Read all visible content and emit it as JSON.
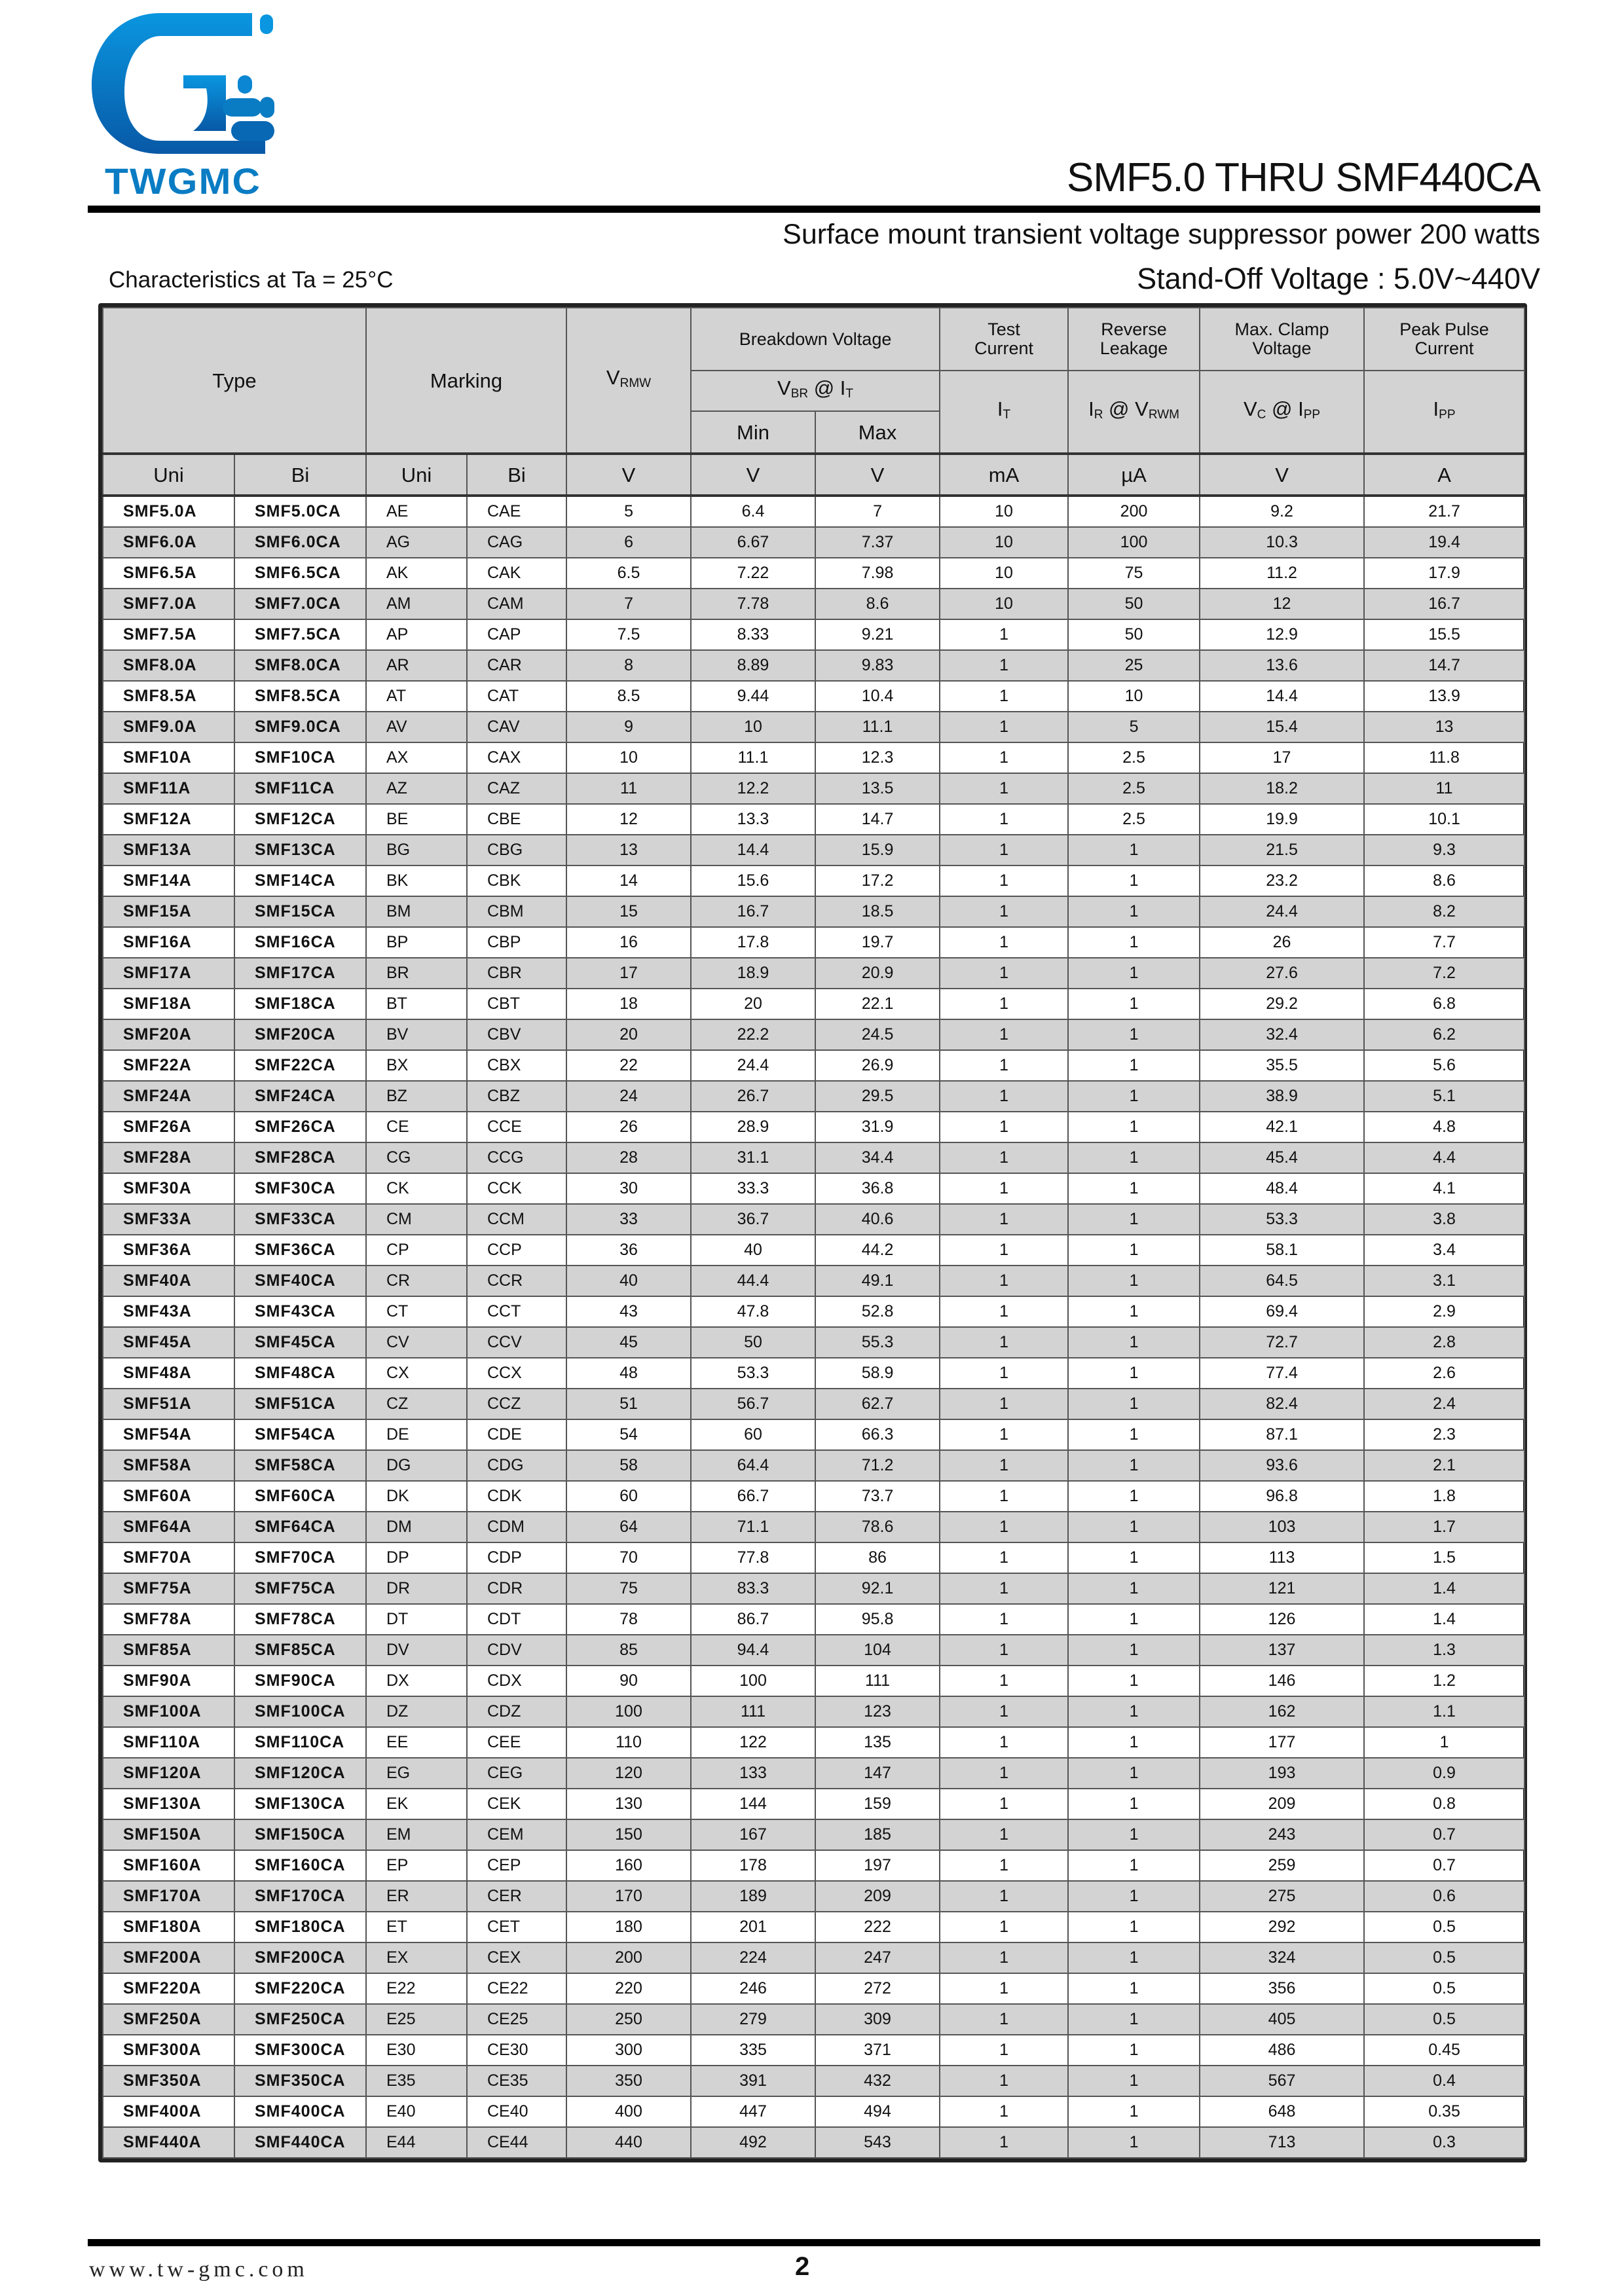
{
  "header": {
    "brand": "TWGMC",
    "brand_color": "#0a7cc4",
    "title": "SMF5.0 THRU SMF440CA",
    "subtitle": "Surface mount transient  voltage suppressor power 200 watts",
    "characteristics": "Characteristics at Ta = 25°C",
    "standoff": "Stand-Off Voltage :  5.0V~440V"
  },
  "table": {
    "headers": {
      "type": "Type",
      "marking": "Marking",
      "vrwm": {
        "main": "V",
        "sub": "RMW"
      },
      "breakdown": "Breakdown Voltage",
      "test_current": "Test Current",
      "reverse_leakage": "Reverse Leakage",
      "max_clamp": "Max. Clamp Voltage",
      "peak_pulse": "Peak Pulse Current",
      "vbr": {
        "v": "V",
        "vsub": "BR",
        "at": " @ ",
        "i": "I",
        "isub": "T"
      },
      "it": {
        "main": "I",
        "sub": "T"
      },
      "ir": {
        "main": "I",
        "sub": "R",
        "at": " @ ",
        "v": "V",
        "vsub": "RWM"
      },
      "vc": {
        "main": "V",
        "sub": "C",
        "at": " @ ",
        "i": "I",
        "isub": "PP"
      },
      "ipp": {
        "main": "I",
        "sub": "PP"
      },
      "min": "Min",
      "max": "Max"
    },
    "units": [
      "Uni",
      "Bi",
      "Uni",
      "Bi",
      "V",
      "V",
      "V",
      "mA",
      "µA",
      "V",
      "A"
    ],
    "rows": [
      [
        "SMF5.0A",
        "SMF5.0CA",
        "AE",
        "CAE",
        "5",
        "6.4",
        "7",
        "10",
        "200",
        "9.2",
        "21.7"
      ],
      [
        "SMF6.0A",
        "SMF6.0CA",
        "AG",
        "CAG",
        "6",
        "6.67",
        "7.37",
        "10",
        "100",
        "10.3",
        "19.4"
      ],
      [
        "SMF6.5A",
        "SMF6.5CA",
        "AK",
        "CAK",
        "6.5",
        "7.22",
        "7.98",
        "10",
        "75",
        "11.2",
        "17.9"
      ],
      [
        "SMF7.0A",
        "SMF7.0CA",
        "AM",
        "CAM",
        "7",
        "7.78",
        "8.6",
        "10",
        "50",
        "12",
        "16.7"
      ],
      [
        "SMF7.5A",
        "SMF7.5CA",
        "AP",
        "CAP",
        "7.5",
        "8.33",
        "9.21",
        "1",
        "50",
        "12.9",
        "15.5"
      ],
      [
        "SMF8.0A",
        "SMF8.0CA",
        "AR",
        "CAR",
        "8",
        "8.89",
        "9.83",
        "1",
        "25",
        "13.6",
        "14.7"
      ],
      [
        "SMF8.5A",
        "SMF8.5CA",
        "AT",
        "CAT",
        "8.5",
        "9.44",
        "10.4",
        "1",
        "10",
        "14.4",
        "13.9"
      ],
      [
        "SMF9.0A",
        "SMF9.0CA",
        "AV",
        "CAV",
        "9",
        "10",
        "11.1",
        "1",
        "5",
        "15.4",
        "13"
      ],
      [
        "SMF10A",
        "SMF10CA",
        "AX",
        "CAX",
        "10",
        "11.1",
        "12.3",
        "1",
        "2.5",
        "17",
        "11.8"
      ],
      [
        "SMF11A",
        "SMF11CA",
        "AZ",
        "CAZ",
        "11",
        "12.2",
        "13.5",
        "1",
        "2.5",
        "18.2",
        "11"
      ],
      [
        "SMF12A",
        "SMF12CA",
        "BE",
        "CBE",
        "12",
        "13.3",
        "14.7",
        "1",
        "2.5",
        "19.9",
        "10.1"
      ],
      [
        "SMF13A",
        "SMF13CA",
        "BG",
        "CBG",
        "13",
        "14.4",
        "15.9",
        "1",
        "1",
        "21.5",
        "9.3"
      ],
      [
        "SMF14A",
        "SMF14CA",
        "BK",
        "CBK",
        "14",
        "15.6",
        "17.2",
        "1",
        "1",
        "23.2",
        "8.6"
      ],
      [
        "SMF15A",
        "SMF15CA",
        "BM",
        "CBM",
        "15",
        "16.7",
        "18.5",
        "1",
        "1",
        "24.4",
        "8.2"
      ],
      [
        "SMF16A",
        "SMF16CA",
        "BP",
        "CBP",
        "16",
        "17.8",
        "19.7",
        "1",
        "1",
        "26",
        "7.7"
      ],
      [
        "SMF17A",
        "SMF17CA",
        "BR",
        "CBR",
        "17",
        "18.9",
        "20.9",
        "1",
        "1",
        "27.6",
        "7.2"
      ],
      [
        "SMF18A",
        "SMF18CA",
        "BT",
        "CBT",
        "18",
        "20",
        "22.1",
        "1",
        "1",
        "29.2",
        "6.8"
      ],
      [
        "SMF20A",
        "SMF20CA",
        "BV",
        "CBV",
        "20",
        "22.2",
        "24.5",
        "1",
        "1",
        "32.4",
        "6.2"
      ],
      [
        "SMF22A",
        "SMF22CA",
        "BX",
        "CBX",
        "22",
        "24.4",
        "26.9",
        "1",
        "1",
        "35.5",
        "5.6"
      ],
      [
        "SMF24A",
        "SMF24CA",
        "BZ",
        "CBZ",
        "24",
        "26.7",
        "29.5",
        "1",
        "1",
        "38.9",
        "5.1"
      ],
      [
        "SMF26A",
        "SMF26CA",
        "CE",
        "CCE",
        "26",
        "28.9",
        "31.9",
        "1",
        "1",
        "42.1",
        "4.8"
      ],
      [
        "SMF28A",
        "SMF28CA",
        "CG",
        "CCG",
        "28",
        "31.1",
        "34.4",
        "1",
        "1",
        "45.4",
        "4.4"
      ],
      [
        "SMF30A",
        "SMF30CA",
        "CK",
        "CCK",
        "30",
        "33.3",
        "36.8",
        "1",
        "1",
        "48.4",
        "4.1"
      ],
      [
        "SMF33A",
        "SMF33CA",
        "CM",
        "CCM",
        "33",
        "36.7",
        "40.6",
        "1",
        "1",
        "53.3",
        "3.8"
      ],
      [
        "SMF36A",
        "SMF36CA",
        "CP",
        "CCP",
        "36",
        "40",
        "44.2",
        "1",
        "1",
        "58.1",
        "3.4"
      ],
      [
        "SMF40A",
        "SMF40CA",
        "CR",
        "CCR",
        "40",
        "44.4",
        "49.1",
        "1",
        "1",
        "64.5",
        "3.1"
      ],
      [
        "SMF43A",
        "SMF43CA",
        "CT",
        "CCT",
        "43",
        "47.8",
        "52.8",
        "1",
        "1",
        "69.4",
        "2.9"
      ],
      [
        "SMF45A",
        "SMF45CA",
        "CV",
        "CCV",
        "45",
        "50",
        "55.3",
        "1",
        "1",
        "72.7",
        "2.8"
      ],
      [
        "SMF48A",
        "SMF48CA",
        "CX",
        "CCX",
        "48",
        "53.3",
        "58.9",
        "1",
        "1",
        "77.4",
        "2.6"
      ],
      [
        "SMF51A",
        "SMF51CA",
        "CZ",
        "CCZ",
        "51",
        "56.7",
        "62.7",
        "1",
        "1",
        "82.4",
        "2.4"
      ],
      [
        "SMF54A",
        "SMF54CA",
        "DE",
        "CDE",
        "54",
        "60",
        "66.3",
        "1",
        "1",
        "87.1",
        "2.3"
      ],
      [
        "SMF58A",
        "SMF58CA",
        "DG",
        "CDG",
        "58",
        "64.4",
        "71.2",
        "1",
        "1",
        "93.6",
        "2.1"
      ],
      [
        "SMF60A",
        "SMF60CA",
        "DK",
        "CDK",
        "60",
        "66.7",
        "73.7",
        "1",
        "1",
        "96.8",
        "1.8"
      ],
      [
        "SMF64A",
        "SMF64CA",
        "DM",
        "CDM",
        "64",
        "71.1",
        "78.6",
        "1",
        "1",
        "103",
        "1.7"
      ],
      [
        "SMF70A",
        "SMF70CA",
        "DP",
        "CDP",
        "70",
        "77.8",
        "86",
        "1",
        "1",
        "113",
        "1.5"
      ],
      [
        "SMF75A",
        "SMF75CA",
        "DR",
        "CDR",
        "75",
        "83.3",
        "92.1",
        "1",
        "1",
        "121",
        "1.4"
      ],
      [
        "SMF78A",
        "SMF78CA",
        "DT",
        "CDT",
        "78",
        "86.7",
        "95.8",
        "1",
        "1",
        "126",
        "1.4"
      ],
      [
        "SMF85A",
        "SMF85CA",
        "DV",
        "CDV",
        "85",
        "94.4",
        "104",
        "1",
        "1",
        "137",
        "1.3"
      ],
      [
        "SMF90A",
        "SMF90CA",
        "DX",
        "CDX",
        "90",
        "100",
        "111",
        "1",
        "1",
        "146",
        "1.2"
      ],
      [
        "SMF100A",
        "SMF100CA",
        "DZ",
        "CDZ",
        "100",
        "111",
        "123",
        "1",
        "1",
        "162",
        "1.1"
      ],
      [
        "SMF110A",
        "SMF110CA",
        "EE",
        "CEE",
        "110",
        "122",
        "135",
        "1",
        "1",
        "177",
        "1"
      ],
      [
        "SMF120A",
        "SMF120CA",
        "EG",
        "CEG",
        "120",
        "133",
        "147",
        "1",
        "1",
        "193",
        "0.9"
      ],
      [
        "SMF130A",
        "SMF130CA",
        "EK",
        "CEK",
        "130",
        "144",
        "159",
        "1",
        "1",
        "209",
        "0.8"
      ],
      [
        "SMF150A",
        "SMF150CA",
        "EM",
        "CEM",
        "150",
        "167",
        "185",
        "1",
        "1",
        "243",
        "0.7"
      ],
      [
        "SMF160A",
        "SMF160CA",
        "EP",
        "CEP",
        "160",
        "178",
        "197",
        "1",
        "1",
        "259",
        "0.7"
      ],
      [
        "SMF170A",
        "SMF170CA",
        "ER",
        "CER",
        "170",
        "189",
        "209",
        "1",
        "1",
        "275",
        "0.6"
      ],
      [
        "SMF180A",
        "SMF180CA",
        "ET",
        "CET",
        "180",
        "201",
        "222",
        "1",
        "1",
        "292",
        "0.5"
      ],
      [
        "SMF200A",
        "SMF200CA",
        "EX",
        "CEX",
        "200",
        "224",
        "247",
        "1",
        "1",
        "324",
        "0.5"
      ],
      [
        "SMF220A",
        "SMF220CA",
        "E22",
        "CE22",
        "220",
        "246",
        "272",
        "1",
        "1",
        "356",
        "0.5"
      ],
      [
        "SMF250A",
        "SMF250CA",
        "E25",
        "CE25",
        "250",
        "279",
        "309",
        "1",
        "1",
        "405",
        "0.5"
      ],
      [
        "SMF300A",
        "SMF300CA",
        "E30",
        "CE30",
        "300",
        "335",
        "371",
        "1",
        "1",
        "486",
        "0.45"
      ],
      [
        "SMF350A",
        "SMF350CA",
        "E35",
        "CE35",
        "350",
        "391",
        "432",
        "1",
        "1",
        "567",
        "0.4"
      ],
      [
        "SMF400A",
        "SMF400CA",
        "E40",
        "CE40",
        "400",
        "447",
        "494",
        "1",
        "1",
        "648",
        "0.35"
      ],
      [
        "SMF440A",
        "SMF440CA",
        "E44",
        "CE44",
        "440",
        "492",
        "543",
        "1",
        "1",
        "713",
        "0.3"
      ]
    ]
  },
  "footer": {
    "url": "www.tw-gmc.com",
    "page": "2"
  }
}
